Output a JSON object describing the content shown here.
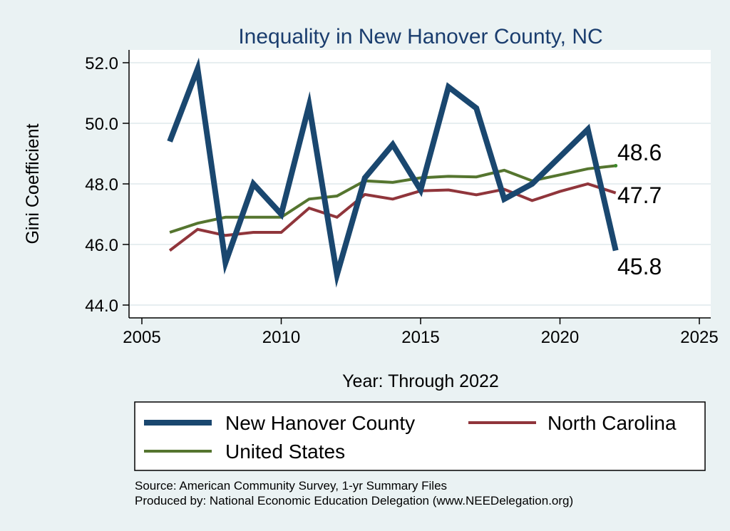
{
  "chart_data": {
    "type": "line",
    "title": "Inequality in New Hanover County, NC",
    "xlabel": "Year: Through 2022",
    "ylabel": "Gini Coefficient",
    "xlim": [
      2005,
      2025
    ],
    "ylim": [
      44.0,
      52.0
    ],
    "x_ticks": [
      2005,
      2010,
      2015,
      2020,
      2025
    ],
    "y_ticks": [
      44.0,
      46.0,
      48.0,
      50.0,
      52.0
    ],
    "y_tick_labels": [
      "44.0",
      "46.0",
      "48.0",
      "50.0",
      "52.0"
    ],
    "grid": "horizontal",
    "legend_position": "bottom",
    "x": [
      2006,
      2007,
      2008,
      2009,
      2010,
      2011,
      2012,
      2013,
      2014,
      2015,
      2016,
      2017,
      2018,
      2019,
      2020,
      2021,
      2022
    ],
    "series": [
      {
        "name": "New Hanover County",
        "color": "#1a476f",
        "values": [
          49.4,
          51.8,
          45.4,
          48.0,
          47.0,
          50.6,
          45.0,
          48.2,
          49.3,
          47.8,
          51.2,
          50.5,
          47.5,
          48.0,
          48.9,
          49.8,
          45.8
        ],
        "end_label": "45.8"
      },
      {
        "name": "North Carolina",
        "color": "#90353b",
        "values": [
          45.8,
          46.5,
          46.3,
          46.4,
          46.4,
          47.2,
          46.9,
          47.65,
          47.5,
          47.77,
          47.8,
          47.64,
          47.82,
          47.45,
          47.75,
          48.0,
          47.7
        ],
        "end_label": "47.7"
      },
      {
        "name": "United States",
        "color": "#55752f",
        "values": [
          46.4,
          46.7,
          46.9,
          46.9,
          46.9,
          47.5,
          47.6,
          48.1,
          48.05,
          48.2,
          48.25,
          48.23,
          48.45,
          48.1,
          48.3,
          48.5,
          48.6
        ],
        "end_label": "48.6"
      }
    ],
    "source_lines": [
      "Source: American Community Survey, 1-yr Summary Files",
      "Produced by: National Economic Education Delegation (www.NEEDelegation.org)"
    ]
  }
}
